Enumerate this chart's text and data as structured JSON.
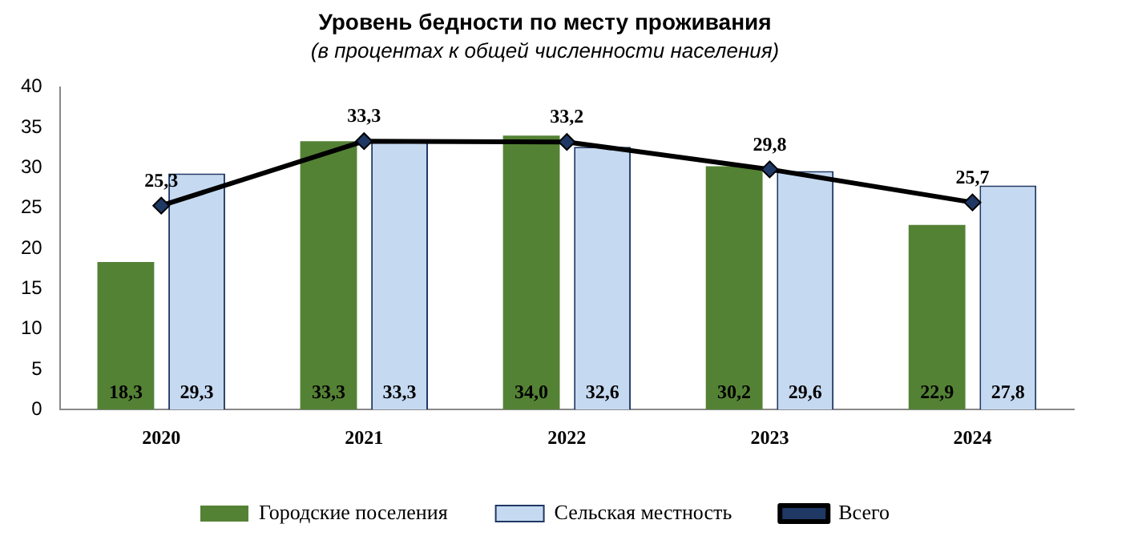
{
  "chart_data": {
    "type": "bar",
    "title": "Уровень бедности по месту проживания",
    "subtitle": "(в процентах к общей численности населения)",
    "categories": [
      "2020",
      "2021",
      "2022",
      "2023",
      "2024"
    ],
    "series": [
      {
        "name": "Городские поселения",
        "color": "#548235",
        "values": [
          18.3,
          33.3,
          34.0,
          30.2,
          22.9
        ],
        "value_labels": [
          "18,3",
          "33,3",
          "34,0",
          "30,2",
          "22,9"
        ]
      },
      {
        "name": "Сельская местность",
        "color": "#c5d9f1",
        "values": [
          29.3,
          33.3,
          32.6,
          29.6,
          27.8
        ],
        "value_labels": [
          "29,3",
          "33,3",
          "32,6",
          "29,6",
          "27,8"
        ]
      },
      {
        "name": "Всего",
        "type": "line",
        "color": "#000000",
        "values": [
          25.3,
          33.3,
          33.2,
          29.8,
          25.7
        ],
        "value_labels": [
          "25,3",
          "33,3",
          "33,2",
          "29,8",
          "25,7"
        ]
      }
    ],
    "ylim": [
      0,
      40
    ],
    "yticks": [
      0,
      5,
      10,
      15,
      20,
      25,
      30,
      35,
      40
    ],
    "grid": false,
    "legend": "bottom",
    "marker": "diamond",
    "line_style": "solid"
  }
}
